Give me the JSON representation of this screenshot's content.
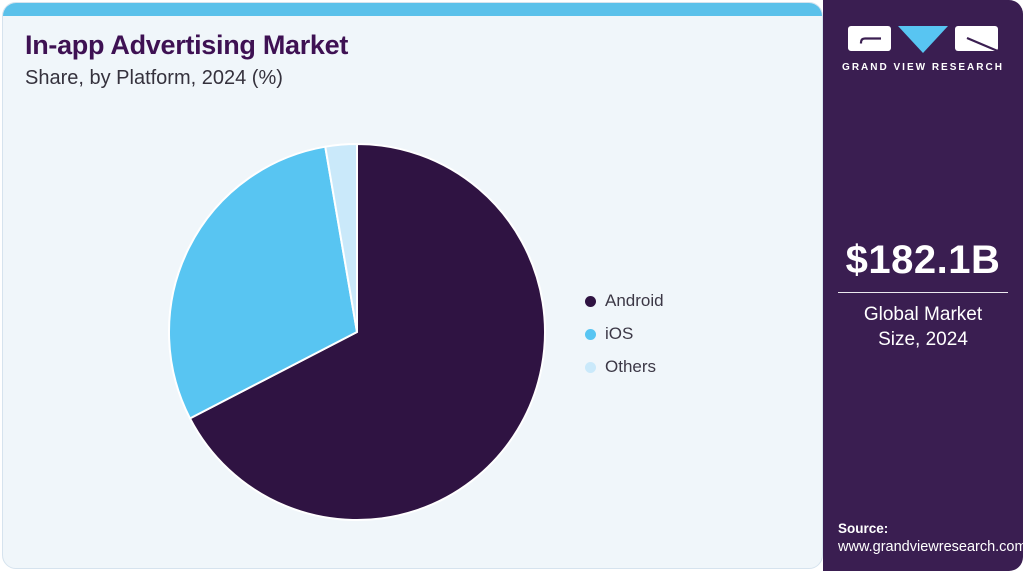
{
  "header": {
    "title": "In-app Advertising Market",
    "subtitle": "Share, by Platform, 2024 (%)"
  },
  "chart_data": {
    "type": "pie",
    "title": "In-app Advertising Market Share, by Platform, 2024 (%)",
    "categories": [
      "Android",
      "iOS",
      "Others"
    ],
    "values": [
      67.4,
      29.9,
      2.7
    ],
    "unit": "%",
    "colors": [
      "#2f1342",
      "#58c5f2",
      "#cae9fa"
    ],
    "start_angle_deg": 0,
    "direction": "clockwise",
    "legend_position": "right",
    "slice_separator_color": "#ffffff"
  },
  "sidebar": {
    "logo": {
      "brand": "GRAND VIEW RESEARCH"
    },
    "market_size": {
      "value": "$182.1B",
      "caption": "Global Market Size, 2024"
    },
    "source": {
      "label": "Source:",
      "url": "www.grandviewresearch.com"
    }
  },
  "theme": {
    "accent": "#5bc1ea",
    "card_bg": "#f0f6fa",
    "card_border": "#d6e3ee",
    "panel_bg": "#3a1e51",
    "title_color": "#3e1153",
    "text_color": "#35323d",
    "legend_text": "#3c3846",
    "logo_triangle": "#58c5f2"
  }
}
